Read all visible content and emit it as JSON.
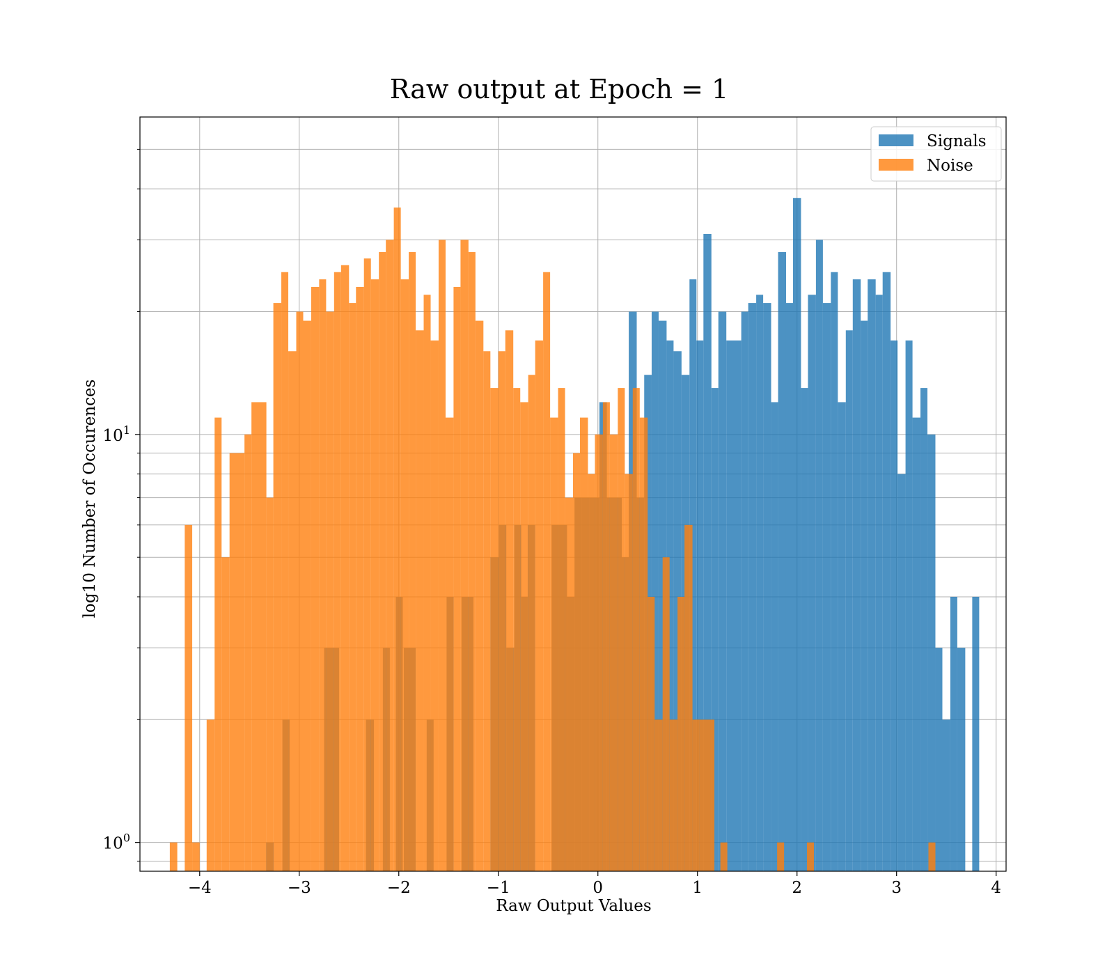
{
  "chart_data": {
    "type": "bar",
    "subtype": "overlaid-histogram",
    "title": "Raw output at Epoch = 1",
    "xlabel": "Raw Output Values",
    "ylabel": "log10 Number of Occurences",
    "xlim": [
      -4.6,
      4.1
    ],
    "ylim": [
      0.85,
      60
    ],
    "yscale": "log",
    "grid": true,
    "legend_position": "top-right",
    "xticks": [
      -4,
      -3,
      -2,
      -1,
      0,
      1,
      2,
      3,
      4
    ],
    "xtick_labels": [
      "−4",
      "−3",
      "−2",
      "−1",
      "0",
      "1",
      "2",
      "3",
      "4"
    ],
    "yticks_major": [
      1,
      10
    ],
    "ytick_labels": [
      {
        "base": "10",
        "exp": "0"
      },
      {
        "base": "10",
        "exp": "1"
      }
    ],
    "yticks_minor": [
      0.9,
      2,
      3,
      4,
      5,
      6,
      7,
      8,
      9,
      20,
      30,
      40,
      50
    ],
    "series": [
      {
        "name": "Signals",
        "color": "#1f77b4",
        "alpha": 0.8,
        "bins": [
          [
            -3.332,
            -3.257,
            1
          ],
          [
            -3.169,
            -3.096,
            2
          ],
          [
            -2.75,
            -2.6,
            3
          ],
          [
            -2.33,
            -2.25,
            2
          ],
          [
            -2.16,
            -2.09,
            3
          ],
          [
            -2.03,
            -1.96,
            4
          ],
          [
            -1.95,
            -1.83,
            3
          ],
          [
            -1.72,
            -1.65,
            2
          ],
          [
            -1.52,
            -1.45,
            4
          ],
          [
            -1.37,
            -1.25,
            4
          ],
          [
            -1.08,
            -0.995,
            5
          ],
          [
            -0.995,
            -0.92,
            6
          ],
          [
            -0.92,
            -0.84,
            3
          ],
          [
            -0.84,
            -0.77,
            6
          ],
          [
            -0.77,
            -0.705,
            4
          ],
          [
            -0.705,
            -0.63,
            6
          ],
          [
            -0.465,
            -0.39,
            6
          ],
          [
            -0.39,
            -0.31,
            6
          ],
          [
            -0.31,
            -0.235,
            4
          ],
          [
            -0.235,
            -0.16,
            7
          ],
          [
            -0.16,
            -0.085,
            7
          ],
          [
            -0.085,
            0.015,
            7
          ],
          [
            0.015,
            0.09,
            12
          ],
          [
            0.09,
            0.24,
            7
          ],
          [
            0.24,
            0.31,
            5
          ],
          [
            0.31,
            0.39,
            20
          ],
          [
            0.39,
            0.465,
            7
          ],
          [
            0.465,
            0.54,
            14
          ],
          [
            0.54,
            0.61,
            20
          ],
          [
            0.61,
            0.69,
            19
          ],
          [
            0.69,
            0.76,
            17
          ],
          [
            0.76,
            0.84,
            16
          ],
          [
            0.84,
            0.92,
            14
          ],
          [
            0.92,
            0.99,
            24
          ],
          [
            0.99,
            1.06,
            17
          ],
          [
            1.06,
            1.14,
            31
          ],
          [
            1.14,
            1.21,
            13
          ],
          [
            1.21,
            1.29,
            20
          ],
          [
            1.29,
            1.44,
            17
          ],
          [
            1.44,
            1.51,
            20
          ],
          [
            1.51,
            1.59,
            21
          ],
          [
            1.59,
            1.66,
            22
          ],
          [
            1.66,
            1.74,
            21
          ],
          [
            1.74,
            1.81,
            12
          ],
          [
            1.81,
            1.89,
            28
          ],
          [
            1.89,
            1.96,
            21
          ],
          [
            1.96,
            2.04,
            38
          ],
          [
            2.04,
            2.11,
            13
          ],
          [
            2.11,
            2.19,
            22
          ],
          [
            2.19,
            2.26,
            30
          ],
          [
            2.26,
            2.34,
            21
          ],
          [
            2.34,
            2.41,
            25
          ],
          [
            2.41,
            2.49,
            12
          ],
          [
            2.49,
            2.56,
            18
          ],
          [
            2.56,
            2.64,
            24
          ],
          [
            2.64,
            2.71,
            19
          ],
          [
            2.71,
            2.79,
            24
          ],
          [
            2.79,
            2.86,
            22
          ],
          [
            2.86,
            2.94,
            25
          ],
          [
            2.94,
            3.01,
            17
          ],
          [
            3.01,
            3.09,
            8
          ],
          [
            3.09,
            3.16,
            17
          ],
          [
            3.16,
            3.24,
            11
          ],
          [
            3.24,
            3.31,
            13
          ],
          [
            3.31,
            3.39,
            10
          ],
          [
            3.39,
            3.46,
            3
          ],
          [
            3.46,
            3.54,
            2
          ],
          [
            3.54,
            3.61,
            4
          ],
          [
            3.61,
            3.69,
            3
          ],
          [
            3.76,
            3.83,
            4
          ]
        ]
      },
      {
        "name": "Noise",
        "color": "#ff7f0e",
        "alpha": 0.8,
        "bins": [
          [
            -4.3,
            -4.225,
            1
          ],
          [
            -4.15,
            -4.075,
            6
          ],
          [
            -4.075,
            -4.0,
            1
          ],
          [
            -3.93,
            -3.85,
            2
          ],
          [
            -3.85,
            -3.78,
            11
          ],
          [
            -3.78,
            -3.7,
            5
          ],
          [
            -3.7,
            -3.55,
            9
          ],
          [
            -3.55,
            -3.48,
            10
          ],
          [
            -3.48,
            -3.33,
            12
          ],
          [
            -3.33,
            -3.26,
            7
          ],
          [
            -3.26,
            -3.18,
            21
          ],
          [
            -3.18,
            -3.11,
            25
          ],
          [
            -3.11,
            -3.03,
            16
          ],
          [
            -3.03,
            -2.96,
            20
          ],
          [
            -2.96,
            -2.88,
            19
          ],
          [
            -2.88,
            -2.8,
            23
          ],
          [
            -2.8,
            -2.73,
            24
          ],
          [
            -2.73,
            -2.65,
            20
          ],
          [
            -2.65,
            -2.58,
            25
          ],
          [
            -2.58,
            -2.5,
            26
          ],
          [
            -2.5,
            -2.43,
            21
          ],
          [
            -2.43,
            -2.35,
            23
          ],
          [
            -2.35,
            -2.28,
            27
          ],
          [
            -2.28,
            -2.2,
            24
          ],
          [
            -2.2,
            -2.13,
            28
          ],
          [
            -2.13,
            -2.05,
            30
          ],
          [
            -2.05,
            -1.98,
            36
          ],
          [
            -1.98,
            -1.9,
            24
          ],
          [
            -1.9,
            -1.83,
            28
          ],
          [
            -1.83,
            -1.75,
            18
          ],
          [
            -1.75,
            -1.68,
            22
          ],
          [
            -1.68,
            -1.6,
            17
          ],
          [
            -1.6,
            -1.53,
            30
          ],
          [
            -1.53,
            -1.45,
            11
          ],
          [
            -1.45,
            -1.38,
            23
          ],
          [
            -1.38,
            -1.3,
            30
          ],
          [
            -1.3,
            -1.23,
            28
          ],
          [
            -1.23,
            -1.15,
            19
          ],
          [
            -1.15,
            -1.08,
            16
          ],
          [
            -1.08,
            -1.0,
            13
          ],
          [
            -1.0,
            -0.93,
            16
          ],
          [
            -0.93,
            -0.85,
            18
          ],
          [
            -0.85,
            -0.78,
            13
          ],
          [
            -0.78,
            -0.7,
            12
          ],
          [
            -0.7,
            -0.63,
            14
          ],
          [
            -0.63,
            -0.55,
            17
          ],
          [
            -0.55,
            -0.48,
            25
          ],
          [
            -0.48,
            -0.4,
            11
          ],
          [
            -0.4,
            -0.33,
            13
          ],
          [
            -0.33,
            -0.25,
            7
          ],
          [
            -0.25,
            -0.18,
            9
          ],
          [
            -0.18,
            -0.1,
            11
          ],
          [
            -0.1,
            -0.03,
            8
          ],
          [
            -0.03,
            0.05,
            10
          ],
          [
            0.05,
            0.12,
            12
          ],
          [
            0.12,
            0.2,
            10
          ],
          [
            0.2,
            0.27,
            13
          ],
          [
            0.27,
            0.35,
            8
          ],
          [
            0.35,
            0.42,
            13
          ],
          [
            0.42,
            0.5,
            11
          ],
          [
            0.5,
            0.57,
            4
          ],
          [
            0.57,
            0.65,
            2
          ],
          [
            0.65,
            0.72,
            5
          ],
          [
            0.72,
            0.8,
            2
          ],
          [
            0.8,
            0.87,
            4
          ],
          [
            0.87,
            0.95,
            6
          ],
          [
            0.95,
            1.02,
            2
          ],
          [
            1.02,
            1.17,
            2
          ],
          [
            1.23,
            1.3,
            1
          ],
          [
            1.8,
            1.87,
            1
          ],
          [
            2.1,
            2.17,
            1
          ],
          [
            3.32,
            3.39,
            1
          ]
        ]
      }
    ]
  }
}
